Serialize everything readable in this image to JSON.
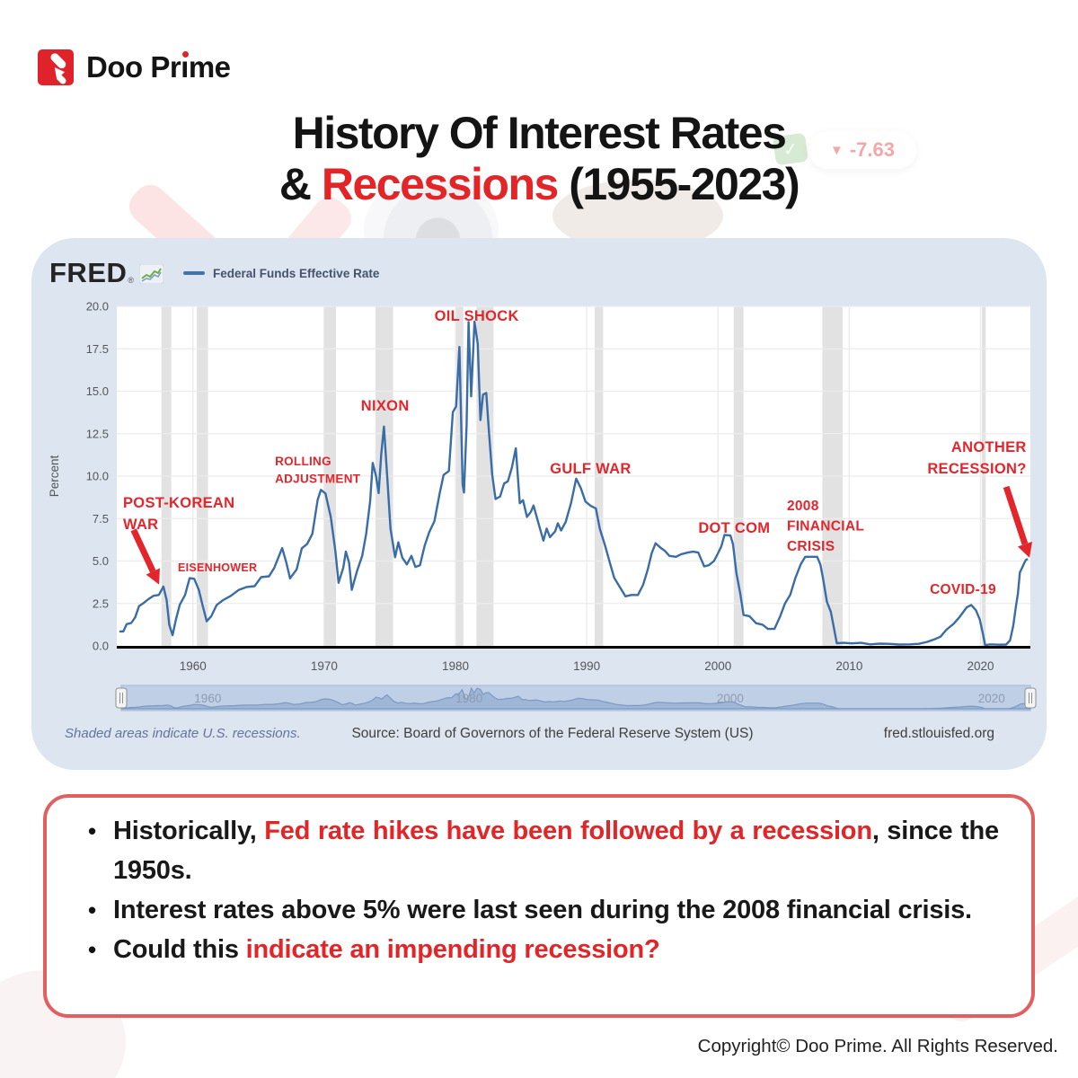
{
  "brand": {
    "name_pre": "Doo Pr",
    "name_i": "ı",
    "name_post": "me"
  },
  "title": {
    "line1": "History Of Interest Rates",
    "line2_prefix": "& ",
    "line2_highlight": "Recessions",
    "line2_suffix": " (1955-2023)",
    "highlight_color": "#e32528"
  },
  "decor": {
    "ticker_arrow": "▼",
    "ticker_value": "-7.63",
    "green_check": "✓"
  },
  "fred_panel": {
    "logo_text": "FRED",
    "logo_reg": "®",
    "legend_label": "Federal Funds Effective Rate",
    "footnote": "Shaded areas indicate U.S. recessions.",
    "source": "Source: Board of Governors of the Federal Reserve System (US)",
    "site": "fred.stlouisfed.org"
  },
  "chart_data": {
    "type": "line",
    "title": "Federal Funds Effective Rate",
    "xlabel": "",
    "ylabel": "Percent",
    "xlim": [
      1954.2,
      2023.8
    ],
    "ylim": [
      0,
      20
    ],
    "x_ticks": [
      1960,
      1970,
      1980,
      1990,
      2000,
      2010,
      2020
    ],
    "y_ticks": [
      0,
      2.5,
      5,
      7.5,
      10,
      12.5,
      15,
      17.5,
      20
    ],
    "grid": true,
    "line_color": "#3a6ca6",
    "recession_color": "#e2e2e2",
    "annotation_color": "#e3262c",
    "navigator_labels": [
      1960,
      1980,
      2000,
      2020
    ],
    "series": [
      {
        "name": "Federal Funds Effective Rate",
        "points": [
          [
            1954.4,
            0.85
          ],
          [
            1954.7,
            0.85
          ],
          [
            1954.95,
            1.28
          ],
          [
            1955.3,
            1.35
          ],
          [
            1955.6,
            1.68
          ],
          [
            1955.9,
            2.35
          ],
          [
            1956.2,
            2.5
          ],
          [
            1956.6,
            2.75
          ],
          [
            1957.0,
            2.95
          ],
          [
            1957.4,
            3.0
          ],
          [
            1957.75,
            3.5
          ],
          [
            1958.0,
            2.7
          ],
          [
            1958.2,
            1.25
          ],
          [
            1958.45,
            0.63
          ],
          [
            1958.7,
            1.55
          ],
          [
            1959.0,
            2.42
          ],
          [
            1959.4,
            3.0
          ],
          [
            1959.75,
            3.99
          ],
          [
            1960.1,
            3.95
          ],
          [
            1960.45,
            3.3
          ],
          [
            1960.75,
            2.35
          ],
          [
            1961.05,
            1.45
          ],
          [
            1961.4,
            1.75
          ],
          [
            1961.8,
            2.4
          ],
          [
            1962.3,
            2.7
          ],
          [
            1962.9,
            2.95
          ],
          [
            1963.5,
            3.3
          ],
          [
            1964.1,
            3.47
          ],
          [
            1964.7,
            3.52
          ],
          [
            1965.2,
            4.05
          ],
          [
            1965.8,
            4.1
          ],
          [
            1966.2,
            4.6
          ],
          [
            1966.8,
            5.76
          ],
          [
            1967.1,
            4.95
          ],
          [
            1967.4,
            3.98
          ],
          [
            1967.9,
            4.5
          ],
          [
            1968.3,
            5.75
          ],
          [
            1968.7,
            6.0
          ],
          [
            1969.1,
            6.6
          ],
          [
            1969.5,
            8.6
          ],
          [
            1969.75,
            9.19
          ],
          [
            1970.1,
            8.98
          ],
          [
            1970.5,
            7.6
          ],
          [
            1970.85,
            5.6
          ],
          [
            1971.1,
            3.72
          ],
          [
            1971.45,
            4.6
          ],
          [
            1971.65,
            5.56
          ],
          [
            1971.9,
            4.9
          ],
          [
            1972.1,
            3.3
          ],
          [
            1972.5,
            4.4
          ],
          [
            1972.9,
            5.3
          ],
          [
            1973.2,
            6.6
          ],
          [
            1973.5,
            8.5
          ],
          [
            1973.7,
            10.78
          ],
          [
            1973.95,
            10.0
          ],
          [
            1974.15,
            9.0
          ],
          [
            1974.35,
            11.3
          ],
          [
            1974.55,
            12.92
          ],
          [
            1974.8,
            10.0
          ],
          [
            1975.05,
            6.9
          ],
          [
            1975.4,
            5.22
          ],
          [
            1975.65,
            6.1
          ],
          [
            1975.95,
            5.2
          ],
          [
            1976.3,
            4.8
          ],
          [
            1976.65,
            5.3
          ],
          [
            1976.95,
            4.65
          ],
          [
            1977.3,
            4.75
          ],
          [
            1977.65,
            5.9
          ],
          [
            1978.0,
            6.7
          ],
          [
            1978.4,
            7.35
          ],
          [
            1978.8,
            9.0
          ],
          [
            1979.1,
            10.07
          ],
          [
            1979.5,
            10.3
          ],
          [
            1979.8,
            13.77
          ],
          [
            1980.05,
            14.1
          ],
          [
            1980.3,
            17.61
          ],
          [
            1980.55,
            9.5
          ],
          [
            1980.65,
            9.03
          ],
          [
            1980.85,
            13.0
          ],
          [
            1981.0,
            19.08
          ],
          [
            1981.2,
            14.7
          ],
          [
            1981.45,
            19.1
          ],
          [
            1981.7,
            17.8
          ],
          [
            1981.9,
            13.3
          ],
          [
            1982.1,
            14.8
          ],
          [
            1982.35,
            14.9
          ],
          [
            1982.55,
            12.6
          ],
          [
            1982.8,
            10.1
          ],
          [
            1983.05,
            8.65
          ],
          [
            1983.4,
            8.8
          ],
          [
            1983.7,
            9.56
          ],
          [
            1984.0,
            9.7
          ],
          [
            1984.3,
            10.5
          ],
          [
            1984.6,
            11.64
          ],
          [
            1984.9,
            8.4
          ],
          [
            1985.15,
            8.58
          ],
          [
            1985.45,
            7.6
          ],
          [
            1985.75,
            7.9
          ],
          [
            1985.95,
            8.27
          ],
          [
            1986.3,
            7.3
          ],
          [
            1986.7,
            6.2
          ],
          [
            1986.95,
            6.91
          ],
          [
            1987.2,
            6.4
          ],
          [
            1987.6,
            6.75
          ],
          [
            1987.8,
            7.22
          ],
          [
            1988.05,
            6.8
          ],
          [
            1988.4,
            7.3
          ],
          [
            1988.8,
            8.4
          ],
          [
            1989.2,
            9.85
          ],
          [
            1989.55,
            9.3
          ],
          [
            1989.9,
            8.5
          ],
          [
            1990.3,
            8.25
          ],
          [
            1990.7,
            8.1
          ],
          [
            1991.0,
            6.9
          ],
          [
            1991.4,
            5.9
          ],
          [
            1991.8,
            4.8
          ],
          [
            1992.1,
            4.0
          ],
          [
            1992.5,
            3.5
          ],
          [
            1992.95,
            2.92
          ],
          [
            1993.4,
            3.0
          ],
          [
            1993.9,
            3.0
          ],
          [
            1994.3,
            3.6
          ],
          [
            1994.65,
            4.5
          ],
          [
            1994.95,
            5.45
          ],
          [
            1995.25,
            6.05
          ],
          [
            1995.6,
            5.8
          ],
          [
            1995.95,
            5.6
          ],
          [
            1996.3,
            5.3
          ],
          [
            1996.8,
            5.25
          ],
          [
            1997.2,
            5.4
          ],
          [
            1997.7,
            5.5
          ],
          [
            1998.1,
            5.55
          ],
          [
            1998.5,
            5.5
          ],
          [
            1998.95,
            4.68
          ],
          [
            1999.3,
            4.75
          ],
          [
            1999.7,
            5.0
          ],
          [
            2000.0,
            5.45
          ],
          [
            2000.25,
            5.85
          ],
          [
            2000.5,
            6.54
          ],
          [
            2000.95,
            6.5
          ],
          [
            2001.15,
            5.98
          ],
          [
            2001.4,
            4.3
          ],
          [
            2001.7,
            3.07
          ],
          [
            2001.95,
            1.82
          ],
          [
            2002.4,
            1.75
          ],
          [
            2002.9,
            1.34
          ],
          [
            2003.4,
            1.25
          ],
          [
            2003.8,
            1.0
          ],
          [
            2004.3,
            1.0
          ],
          [
            2004.75,
            1.76
          ],
          [
            2005.1,
            2.5
          ],
          [
            2005.5,
            3.0
          ],
          [
            2005.9,
            4.0
          ],
          [
            2006.3,
            4.8
          ],
          [
            2006.65,
            5.25
          ],
          [
            2007.1,
            5.25
          ],
          [
            2007.55,
            5.25
          ],
          [
            2007.8,
            4.8
          ],
          [
            2008.0,
            4.0
          ],
          [
            2008.3,
            2.6
          ],
          [
            2008.6,
            2.0
          ],
          [
            2008.85,
            1.0
          ],
          [
            2009.05,
            0.16
          ],
          [
            2009.6,
            0.18
          ],
          [
            2010.2,
            0.15
          ],
          [
            2010.9,
            0.18
          ],
          [
            2011.6,
            0.09
          ],
          [
            2012.3,
            0.13
          ],
          [
            2013.0,
            0.12
          ],
          [
            2013.8,
            0.08
          ],
          [
            2014.6,
            0.09
          ],
          [
            2015.3,
            0.12
          ],
          [
            2015.95,
            0.24
          ],
          [
            2016.5,
            0.39
          ],
          [
            2016.95,
            0.54
          ],
          [
            2017.4,
            0.95
          ],
          [
            2017.95,
            1.3
          ],
          [
            2018.4,
            1.7
          ],
          [
            2018.95,
            2.27
          ],
          [
            2019.3,
            2.41
          ],
          [
            2019.65,
            2.1
          ],
          [
            2019.95,
            1.55
          ],
          [
            2020.2,
            0.65
          ],
          [
            2020.35,
            0.05
          ],
          [
            2020.8,
            0.09
          ],
          [
            2021.4,
            0.07
          ],
          [
            2021.95,
            0.08
          ],
          [
            2022.25,
            0.33
          ],
          [
            2022.5,
            1.21
          ],
          [
            2022.7,
            2.33
          ],
          [
            2022.85,
            3.08
          ],
          [
            2023.0,
            4.33
          ],
          [
            2023.15,
            4.57
          ],
          [
            2023.3,
            4.83
          ],
          [
            2023.45,
            5.06
          ],
          [
            2023.6,
            5.12
          ]
        ]
      }
    ],
    "recessions": [
      [
        1957.6,
        1958.35
      ],
      [
        1960.3,
        1961.15
      ],
      [
        1969.95,
        1970.9
      ],
      [
        1973.9,
        1975.25
      ],
      [
        1980.05,
        1980.6
      ],
      [
        1981.6,
        1982.9
      ],
      [
        1990.6,
        1991.25
      ],
      [
        2001.2,
        2001.95
      ],
      [
        2007.95,
        2009.5
      ],
      [
        2020.1,
        2020.4
      ]
    ],
    "annotations": [
      {
        "lines": [
          "POST-KOREAN",
          "WAR"
        ],
        "x": 1954.68,
        "y": 8.15,
        "size": 16.5,
        "align": "left"
      },
      {
        "lines": [
          "EISENHOWER"
        ],
        "x": 1958.85,
        "y": 4.39,
        "size": 12.5,
        "align": "left"
      },
      {
        "lines": [
          "ROLLING",
          "ADJUSTMENT"
        ],
        "x": 1966.25,
        "y": 10.63,
        "size": 13.5,
        "align": "left"
      },
      {
        "lines": [
          "NIXON"
        ],
        "x": 1972.8,
        "y": 13.86,
        "size": 16.5,
        "align": "left"
      },
      {
        "lines": [
          "OIL SHOCK"
        ],
        "x": 1978.4,
        "y": 19.15,
        "size": 16.5,
        "align": "left"
      },
      {
        "lines": [
          "GULF WAR"
        ],
        "x": 1987.2,
        "y": 10.16,
        "size": 16.5,
        "align": "left"
      },
      {
        "lines": [
          "DOT COM"
        ],
        "x": 1998.5,
        "y": 6.67,
        "size": 16.5,
        "align": "left"
      },
      {
        "lines": [
          "2008",
          "FINANCIAL",
          "CRISIS"
        ],
        "x": 2005.25,
        "y": 7.99,
        "size": 15.5,
        "align": "left"
      },
      {
        "lines": [
          "COVID-19"
        ],
        "x": 2016.14,
        "y": 3.07,
        "size": 15.5,
        "align": "left"
      },
      {
        "lines": [
          "ANOTHER",
          "RECESSION?"
        ],
        "x": 2023.5,
        "y": 11.43,
        "size": 16.5,
        "align": "right"
      }
    ],
    "arrows": [
      {
        "from": [
          1955.48,
          6.83
        ],
        "to": [
          1957.42,
          3.62
        ]
      },
      {
        "from": [
          2021.96,
          9.37
        ],
        "to": [
          2023.73,
          5.19
        ]
      }
    ]
  },
  "insights": {
    "bullets": [
      {
        "segments": [
          {
            "text": "Historically, ",
            "style": "plain"
          },
          {
            "text": "Fed rate hikes have been followed by a recession",
            "style": "red"
          },
          {
            "text": ", since the 1950s.",
            "style": "plain"
          }
        ]
      },
      {
        "segments": [
          {
            "text": "Interest rates above 5% were last seen during the 2008 financial crisis.",
            "style": "plain"
          }
        ]
      },
      {
        "segments": [
          {
            "text": "Could this ",
            "style": "plain"
          },
          {
            "text": "indicate an impending recession?",
            "style": "red"
          }
        ]
      }
    ]
  },
  "footer": {
    "copyright": "Copyright© Doo Prime. All Rights Reserved."
  }
}
